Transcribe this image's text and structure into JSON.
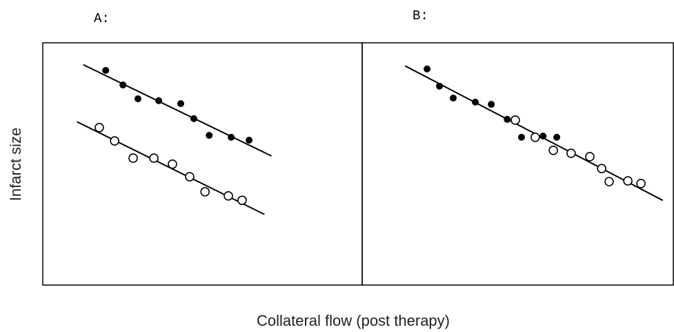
{
  "chart_data": [
    {
      "type": "scatter",
      "title": "A:",
      "xlim": [
        0,
        100
      ],
      "ylim": [
        0,
        100
      ],
      "fit": "per-series",
      "series": [
        {
          "color": "#000000",
          "marker": "filled",
          "x": [
            19.7,
            25.1,
            29.8,
            36.3,
            43.2,
            47.3,
            52.1,
            59.0,
            64.6
          ],
          "values": [
            88.6,
            82.6,
            76.9,
            76.1,
            74.9,
            68.7,
            61.8,
            61.0,
            59.8
          ]
        },
        {
          "color": "#000000",
          "marker": "open",
          "x": [
            17.7,
            22.5,
            28.3,
            34.8,
            40.6,
            46.0,
            50.8,
            58.1,
            62.4
          ],
          "values": [
            65.0,
            59.5,
            52.4,
            52.4,
            49.9,
            44.7,
            38.5,
            36.8,
            35.0
          ]
        }
      ]
    },
    {
      "type": "scatter",
      "title": "B:",
      "xlim": [
        0,
        100
      ],
      "ylim": [
        0,
        100
      ],
      "fit": "pooled",
      "series": [
        {
          "color": "#000000",
          "marker": "filled",
          "x": [
            20.8,
            24.8,
            29.2,
            36.3,
            41.4,
            46.5,
            51.1,
            58.0,
            62.4
          ],
          "values": [
            89.2,
            82.1,
            77.2,
            75.5,
            74.6,
            68.4,
            61.0,
            61.5,
            61.0
          ]
        },
        {
          "color": "#000000",
          "marker": "open",
          "x": [
            49.1,
            55.5,
            61.3,
            67.0,
            73.0,
            76.8,
            79.2,
            85.2,
            89.4
          ],
          "values": [
            68.1,
            61.0,
            55.6,
            54.4,
            53.0,
            48.1,
            42.7,
            43.0,
            41.9
          ]
        }
      ]
    }
  ],
  "y_label": "Infarct size",
  "x_label": "Collateral flow (post therapy)"
}
